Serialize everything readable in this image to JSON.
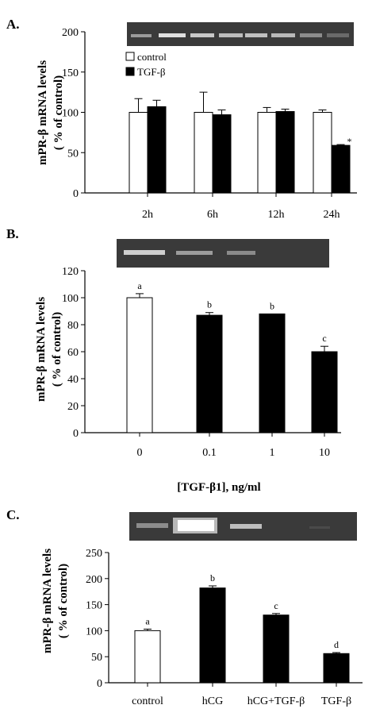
{
  "panels": [
    {
      "label": "A.",
      "ylabel_line1": "mPR-β  mRNA levels",
      "ylabel_line2": "( % of control)",
      "legend": [
        "control",
        "TGF-β"
      ]
    },
    {
      "label": "B.",
      "ylabel_line1": "mPR-β  mRNA levels",
      "ylabel_line2": "( % of control)",
      "xlabel": "[TGF-β1], ng/ml"
    },
    {
      "label": "C.",
      "ylabel_line1": "mPR-β mRNA levels",
      "ylabel_line2": "( % of control)"
    }
  ],
  "colors": {
    "control": "#ffffff",
    "treatment": "#000000",
    "axis": "#000000",
    "gel_bg": "#3a3a3a"
  },
  "chart_data": [
    {
      "type": "bar",
      "categories": [
        "2h",
        "6h",
        "12h",
        "24h"
      ],
      "series": [
        {
          "name": "control",
          "values": [
            100,
            100,
            100,
            100
          ],
          "errors": [
            17,
            25,
            6,
            3
          ]
        },
        {
          "name": "TGF-β",
          "values": [
            107,
            97,
            101,
            59
          ],
          "errors": [
            8,
            6,
            3,
            1
          ]
        }
      ],
      "annotations": [
        "",
        "",
        "",
        "*"
      ],
      "ylim": [
        0,
        200
      ],
      "yticks": [
        0,
        50,
        100,
        150,
        200
      ],
      "legend_position": "top-left"
    },
    {
      "type": "bar",
      "categories": [
        "0",
        "0.1",
        "1",
        "10"
      ],
      "values": [
        100,
        87,
        88,
        60
      ],
      "errors": [
        3,
        2,
        0,
        4
      ],
      "fills": [
        "control",
        "treatment",
        "treatment",
        "treatment"
      ],
      "annotations": [
        "a",
        "b",
        "b",
        "c"
      ],
      "ylim": [
        0,
        120
      ],
      "yticks": [
        0,
        20,
        40,
        60,
        80,
        100,
        120
      ]
    },
    {
      "type": "bar",
      "categories": [
        "control",
        "hCG",
        "hCG+TGF-β",
        "TGF-β"
      ],
      "values": [
        100,
        182,
        130,
        56
      ],
      "errors": [
        3,
        4,
        3,
        2
      ],
      "fills": [
        "control",
        "treatment",
        "treatment",
        "treatment"
      ],
      "annotations": [
        "a",
        "b",
        "c",
        "d"
      ],
      "ylim": [
        0,
        250
      ],
      "yticks": [
        0,
        50,
        100,
        150,
        200,
        250
      ]
    }
  ]
}
